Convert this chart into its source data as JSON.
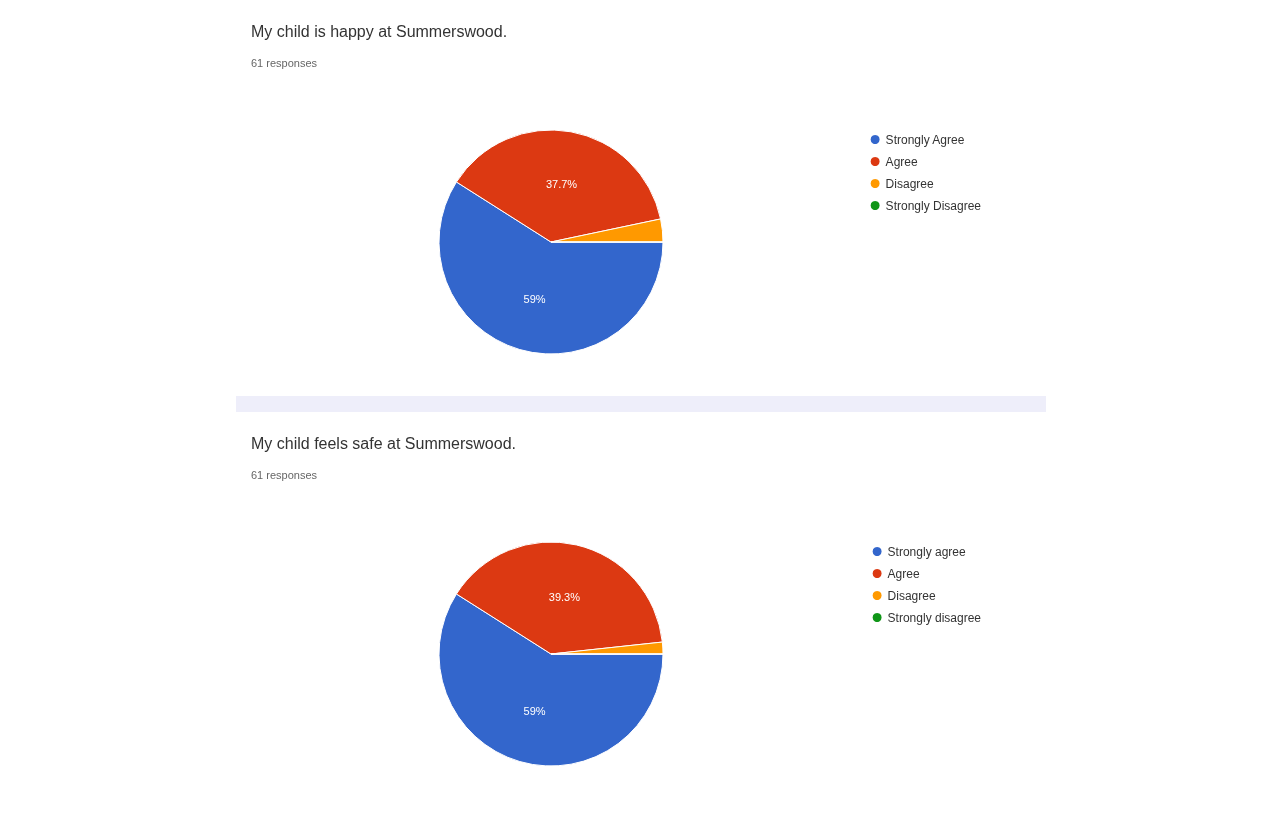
{
  "chart_data": [
    {
      "type": "pie",
      "title": "My child is happy at Summerswood.",
      "subtitle": "61 responses",
      "categories": [
        "Strongly Agree",
        "Agree",
        "Disagree",
        "Strongly Disagree"
      ],
      "values": [
        59,
        37.7,
        3.3,
        0
      ],
      "colors": [
        "#3366cc",
        "#dc3912",
        "#ff9900",
        "#109618"
      ],
      "value_labels": [
        "59%",
        "37.7%",
        null,
        null
      ],
      "legend": "right"
    },
    {
      "type": "pie",
      "title": "My child feels safe at Summerswood.",
      "subtitle": "61 responses",
      "categories": [
        "Strongly agree",
        "Agree",
        "Disagree",
        "Strongly disagree"
      ],
      "values": [
        59,
        39.3,
        1.7,
        0
      ],
      "colors": [
        "#3366cc",
        "#dc3912",
        "#ff9900",
        "#109618"
      ],
      "value_labels": [
        "59%",
        "39.3%",
        null,
        null
      ],
      "legend": "right"
    }
  ]
}
